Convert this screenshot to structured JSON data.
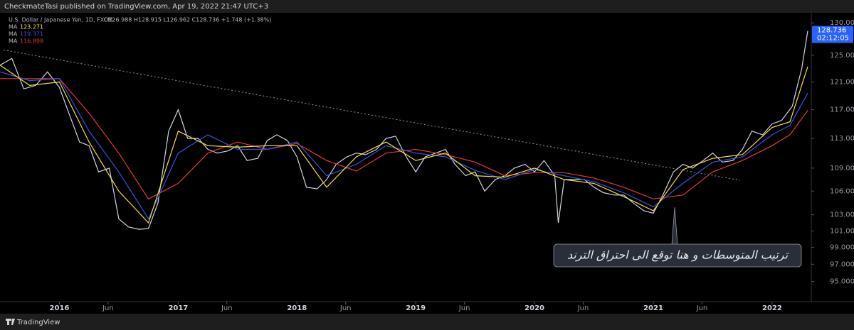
{
  "published": "CheckmateTasi published on TradingView.com, Apr 19, 2022 21:47 UTC+3",
  "footer": "TradingView",
  "chart_data": {
    "type": "line",
    "symbol": "U.S. Dollar / Japanese Yen, 1D, FXCM",
    "ohlc": "O126.988 H128.915 L126.962 C128.736 +1.748 (+1.38%)",
    "log_scale": true,
    "xlim": [
      2015.5,
      2022.33
    ],
    "ylim": [
      92.7,
      131.6
    ],
    "xticks": [
      {
        "value": 2016,
        "label": "2016"
      },
      {
        "value": 2016.41,
        "label": "Jun"
      },
      {
        "value": 2017,
        "label": "2017"
      },
      {
        "value": 2017.41,
        "label": "Jun"
      },
      {
        "value": 2018,
        "label": "2018"
      },
      {
        "value": 2018.41,
        "label": "Jun"
      },
      {
        "value": 2019,
        "label": "2019"
      },
      {
        "value": 2019.41,
        "label": "Jun"
      },
      {
        "value": 2020,
        "label": "2020"
      },
      {
        "value": 2020.41,
        "label": "Jun"
      },
      {
        "value": 2021,
        "label": "2021"
      },
      {
        "value": 2021.41,
        "label": "Jun"
      },
      {
        "value": 2022,
        "label": "2022"
      }
    ],
    "yticks": [
      {
        "value": 130,
        "label": "130.000"
      },
      {
        "value": 125,
        "label": "125.000"
      },
      {
        "value": 121,
        "label": "121.000"
      },
      {
        "value": 117,
        "label": "117.000"
      },
      {
        "value": 113,
        "label": "113.000"
      },
      {
        "value": 109,
        "label": "109.000"
      },
      {
        "value": 106,
        "label": "106.000"
      },
      {
        "value": 103,
        "label": "103.000"
      },
      {
        "value": 101,
        "label": "101.000"
      },
      {
        "value": 99,
        "label": "99.000"
      },
      {
        "value": 97,
        "label": "97.000"
      },
      {
        "value": 95,
        "label": "95.000"
      }
    ],
    "price": {
      "color": "#d1d4dc",
      "x": [
        2015.5,
        2015.6,
        2015.7,
        2015.8,
        2015.9,
        2016.0,
        2016.08,
        2016.17,
        2016.25,
        2016.33,
        2016.42,
        2016.5,
        2016.58,
        2016.67,
        2016.75,
        2016.83,
        2016.92,
        2017.0,
        2017.08,
        2017.17,
        2017.25,
        2017.33,
        2017.42,
        2017.5,
        2017.58,
        2017.67,
        2017.75,
        2017.83,
        2017.92,
        2018.0,
        2018.08,
        2018.17,
        2018.25,
        2018.33,
        2018.42,
        2018.5,
        2018.58,
        2018.67,
        2018.75,
        2018.83,
        2018.92,
        2019.0,
        2019.08,
        2019.17,
        2019.25,
        2019.33,
        2019.42,
        2019.5,
        2019.58,
        2019.67,
        2019.75,
        2019.83,
        2019.92,
        2020.0,
        2020.08,
        2020.17,
        2020.2,
        2020.25,
        2020.33,
        2020.42,
        2020.5,
        2020.58,
        2020.67,
        2020.75,
        2020.83,
        2020.92,
        2021.0,
        2021.08,
        2021.17,
        2021.25,
        2021.33,
        2021.42,
        2021.5,
        2021.58,
        2021.67,
        2021.75,
        2021.83,
        2021.92,
        2022.0,
        2022.08,
        2022.17,
        2022.25,
        2022.3
      ],
      "values": [
        123.5,
        124.5,
        120,
        120.5,
        122.5,
        120.2,
        116.5,
        112.5,
        112,
        108.5,
        109,
        102.5,
        101.5,
        101.2,
        101.3,
        104.5,
        114,
        117,
        113,
        113,
        111.5,
        111,
        111.3,
        112,
        110,
        110.3,
        112.7,
        113.5,
        112.7,
        110.5,
        106.5,
        106.3,
        107.5,
        109.5,
        110.5,
        111,
        110.8,
        111.5,
        113,
        113.3,
        110.5,
        108.5,
        110.5,
        111,
        111.5,
        109.5,
        108,
        108.5,
        106,
        107.5,
        108,
        109,
        109.5,
        108.5,
        110,
        108,
        102,
        107.5,
        107.5,
        107.5,
        106.5,
        105.8,
        105.5,
        105.5,
        104.5,
        103.5,
        103.2,
        105.5,
        108.5,
        109.5,
        109,
        110,
        111,
        109.8,
        110,
        111.5,
        114,
        113.5,
        115,
        115.5,
        117.5,
        123,
        128.736
      ]
    },
    "last_price": 128.736,
    "countdown": "02:12:05",
    "ma_x": [
      2015.5,
      2015.75,
      2016,
      2016.25,
      2016.5,
      2016.75,
      2017,
      2017.25,
      2017.5,
      2017.75,
      2018,
      2018.25,
      2018.5,
      2018.75,
      2019,
      2019.25,
      2019.5,
      2019.75,
      2020,
      2020.25,
      2020.5,
      2020.75,
      2021,
      2021.25,
      2021.5,
      2021.75,
      2022,
      2022.15,
      2022.3
    ],
    "series": [
      {
        "name": "MA",
        "legend_value": 123.271,
        "color": "#f5e03b",
        "values": [
          123.5,
          120.5,
          121,
          112.5,
          106,
          102,
          114,
          112,
          111.8,
          112,
          112,
          106.5,
          110.5,
          112.5,
          110,
          111,
          108,
          107.8,
          109,
          107.5,
          107,
          105.3,
          103.5,
          108.8,
          110.3,
          110.8,
          114.5,
          115.3,
          123.271
        ]
      },
      {
        "name": "MA",
        "legend_value": 119.371,
        "color": "#3f51d8",
        "values": [
          122.5,
          121.2,
          121.5,
          114,
          108.5,
          102.5,
          111,
          113.5,
          111.5,
          111.5,
          112.5,
          108,
          109.5,
          112,
          111,
          110.5,
          108.7,
          107.5,
          108.8,
          108,
          107.2,
          105.8,
          104,
          107,
          109.8,
          110.5,
          113.5,
          114.8,
          119.371
        ]
      },
      {
        "name": "MA",
        "legend_value": 116.898,
        "color": "#e03a3a",
        "values": [
          121.5,
          121.5,
          121.5,
          116.5,
          111,
          105,
          107,
          111,
          112.5,
          111.5,
          112.3,
          110,
          108.6,
          111,
          111.5,
          110.8,
          109.8,
          108,
          108.4,
          108.4,
          107.7,
          106.5,
          105,
          105.5,
          108.5,
          110,
          112,
          113.5,
          116.898
        ]
      }
    ],
    "trendline": {
      "x": [
        2015.53,
        2021.73
      ],
      "values": [
        125.8,
        107.4
      ]
    },
    "annotation": "ترتيب المتوسطات و هنا توقع الى احتراق الترند"
  }
}
